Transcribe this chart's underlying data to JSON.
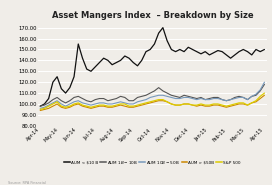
{
  "title": "Asset Mangers Index  – Breakdown by Size",
  "x_labels": [
    "Apr-14",
    "May-14",
    "Jun-14",
    "Jul-14",
    "Aug-14",
    "Sep-14",
    "Oct-14",
    "Nov-14",
    "Dec-14",
    "Jan-15",
    "Feb-15",
    "Mar-15",
    "Apr-15"
  ],
  "ylim": [
    80,
    175
  ],
  "yticks": [
    80,
    90,
    100,
    110,
    120,
    130,
    140,
    150,
    160,
    170
  ],
  "ytick_labels": [
    "80.00",
    "90.00",
    "100.00",
    "110.00",
    "120.00",
    "130.00",
    "140.00",
    "150.00",
    "160.00",
    "170.00"
  ],
  "series": {
    "AUM < $10 B": {
      "color": "#111111",
      "lw": 0.9,
      "data": [
        98,
        100,
        105,
        120,
        125,
        114,
        110,
        115,
        125,
        155,
        142,
        132,
        130,
        134,
        138,
        142,
        140,
        136,
        138,
        140,
        144,
        142,
        138,
        135,
        140,
        148,
        150,
        155,
        165,
        170,
        158,
        150,
        148,
        150,
        148,
        152,
        150,
        148,
        146,
        148,
        145,
        147,
        149,
        148,
        145,
        142,
        145,
        148,
        150,
        148,
        145,
        150,
        148,
        150
      ]
    },
    "AUM $1B - $10B": {
      "color": "#555555",
      "lw": 0.8,
      "data": [
        98,
        99,
        101,
        104,
        106,
        103,
        101,
        103,
        106,
        107,
        105,
        103,
        102,
        104,
        105,
        105,
        103,
        104,
        105,
        107,
        106,
        103,
        103,
        106,
        107,
        108,
        110,
        112,
        115,
        112,
        110,
        108,
        107,
        106,
        108,
        107,
        106,
        105,
        106,
        104,
        105,
        106,
        106,
        104,
        103,
        104,
        106,
        107,
        106,
        104,
        107,
        108,
        112,
        118
      ]
    },
    "AUM $10B - $50B": {
      "color": "#7799bb",
      "lw": 0.8,
      "data": [
        96,
        97,
        99,
        101,
        103,
        100,
        98,
        100,
        102,
        103,
        101,
        100,
        99,
        100,
        101,
        101,
        100,
        100,
        101,
        102,
        101,
        100,
        100,
        102,
        103,
        104,
        106,
        107,
        108,
        108,
        107,
        106,
        105,
        105,
        106,
        106,
        105,
        104,
        105,
        104,
        104,
        105,
        105,
        104,
        103,
        104,
        105,
        106,
        106,
        104,
        107,
        109,
        113,
        120
      ]
    },
    "AUM > $50B": {
      "color": "#cc8800",
      "lw": 0.8,
      "data": [
        94,
        95,
        96,
        98,
        100,
        97,
        96,
        97,
        99,
        100,
        98,
        97,
        96,
        97,
        98,
        98,
        97,
        97,
        98,
        99,
        98,
        97,
        97,
        98,
        99,
        100,
        101,
        102,
        103,
        103,
        102,
        100,
        99,
        99,
        100,
        100,
        99,
        98,
        99,
        98,
        98,
        99,
        99,
        98,
        97,
        98,
        99,
        100,
        100,
        99,
        101,
        102,
        105,
        108
      ]
    },
    "S&P 500": {
      "color": "#ddcc00",
      "lw": 0.9,
      "data": [
        95,
        96,
        98,
        100,
        102,
        98,
        97,
        98,
        100,
        101,
        99,
        98,
        97,
        98,
        99,
        99,
        98,
        98,
        99,
        100,
        100,
        98,
        98,
        99,
        100,
        101,
        102,
        103,
        104,
        104,
        102,
        100,
        99,
        99,
        100,
        100,
        99,
        99,
        100,
        99,
        99,
        100,
        100,
        99,
        98,
        99,
        100,
        101,
        101,
        99,
        101,
        103,
        107,
        110
      ]
    }
  },
  "legend_labels": [
    "AUM < $10 B",
    "AUM $1B - $10B",
    "AUM $10B - $50B",
    "AUM > $50B",
    "S&P 500"
  ],
  "bg_color": "#f0ede8",
  "grid_color": "#ffffff",
  "source_text": "Source: RPA Financial"
}
